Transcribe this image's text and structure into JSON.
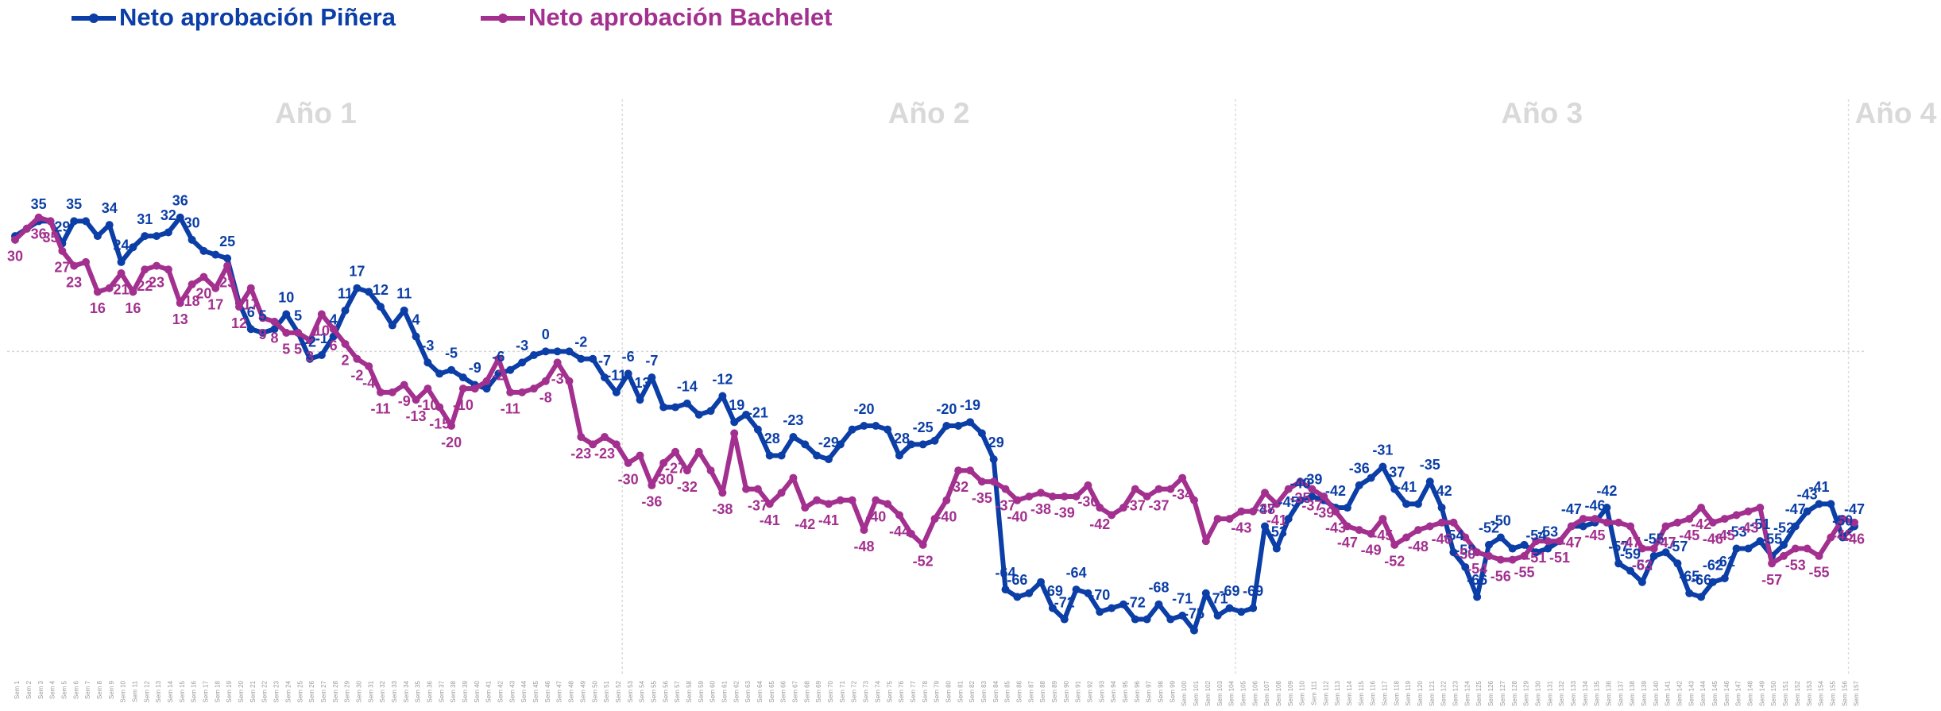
{
  "chart_data": {
    "type": "line",
    "annotations": [
      "Año 1",
      "Año 2",
      "Año 3",
      "Año 4"
    ],
    "legend": "top-left",
    "grid": true,
    "ylim": [
      -80,
      40
    ],
    "yticks": [
      0
    ],
    "categories": [
      "Sem 1",
      "Sem 2",
      "Sem 3",
      "Sem 4",
      "Sem 5",
      "Sem 6",
      "Sem 7",
      "Sem 8",
      "Sem 9",
      "Sem 10",
      "Sem 11",
      "Sem 12",
      "Sem 13",
      "Sem 14",
      "Sem 15",
      "Sem 16",
      "Sem 17",
      "Sem 18",
      "Sem 19",
      "Sem 20",
      "Sem 21",
      "Sem 22",
      "Sem 23",
      "Sem 24",
      "Sem 25",
      "Sem 26",
      "Sem 27",
      "Sem 28",
      "Sem 29",
      "Sem 30",
      "Sem 31",
      "Sem 32",
      "Sem 33",
      "Sem 34",
      "Sem 35",
      "Sem 36",
      "Sem 37",
      "Sem 38",
      "Sem 39",
      "Sem 40",
      "Sem 41",
      "Sem 42",
      "Sem 43",
      "Sem 44",
      "Sem 45",
      "Sem 46",
      "Sem 47",
      "Sem 48",
      "Sem 49",
      "Sem 50",
      "Sem 51",
      "Sem 52",
      "Sem 53",
      "Sem 54",
      "Sem 55",
      "Sem 56",
      "Sem 57",
      "Sem 58",
      "Sem 59",
      "Sem 60",
      "Sem 61",
      "Sem 62",
      "Sem 63",
      "Sem 64",
      "Sem 65",
      "Sem 66",
      "Sem 67",
      "Sem 68",
      "Sem 69",
      "Sem 70",
      "Sem 71",
      "Sem 72",
      "Sem 73",
      "Sem 74",
      "Sem 75",
      "Sem 76",
      "Sem 77",
      "Sem 78",
      "Sem 79",
      "Sem 80",
      "Sem 81",
      "Sem 82",
      "Sem 83",
      "Sem 84",
      "Sem 85",
      "Sem 86",
      "Sem 87",
      "Sem 88",
      "Sem 89",
      "Sem 90",
      "Sem 91",
      "Sem 92",
      "Sem 93",
      "Sem 94",
      "Sem 95",
      "Sem 96",
      "Sem 97",
      "Sem 98",
      "Sem 99",
      "Sem 100",
      "Sem 101",
      "Sem 102",
      "Sem 103",
      "Sem 104",
      "Sem 105",
      "Sem 106",
      "Sem 107",
      "Sem 108",
      "Sem 109",
      "Sem 110",
      "Sem 111",
      "Sem 112",
      "Sem 113",
      "Sem 114",
      "Sem 115",
      "Sem 116",
      "Sem 117",
      "Sem 118",
      "Sem 119",
      "Sem 120",
      "Sem 121",
      "Sem 122",
      "Sem 123",
      "Sem 124",
      "Sem 125",
      "Sem 126",
      "Sem 127",
      "Sem 128",
      "Sem 129",
      "Sem 130",
      "Sem 131",
      "Sem 132",
      "Sem 133",
      "Sem 134",
      "Sem 135",
      "Sem 136",
      "Sem 137",
      "Sem 138",
      "Sem 139",
      "Sem 140",
      "Sem 141",
      "Sem 142",
      "Sem 143",
      "Sem 144",
      "Sem 145",
      "Sem 146",
      "Sem 147",
      "Sem 148",
      "Sem 149",
      "Sem 150",
      "Sem 151",
      "Sem 152",
      "Sem 153",
      "Sem 154",
      "Sem 155",
      "Sem 156",
      "Sem 157"
    ],
    "series": [
      {
        "name": "Neto aprobación Piñera",
        "color": "#0b3ea6",
        "values": [
          31,
          33,
          35,
          35,
          29,
          35,
          35,
          31,
          34,
          24,
          28,
          31,
          31,
          32,
          36,
          30,
          27,
          26,
          25,
          13,
          6,
          5,
          6,
          10,
          5,
          -2,
          -1,
          4,
          11,
          17,
          16,
          12,
          7,
          11,
          4,
          -3,
          -6,
          -5,
          -7,
          -9,
          -10,
          -6,
          -5,
          -3,
          -1,
          0,
          0,
          0,
          -2,
          -2,
          -7,
          -11,
          -6,
          -13,
          -7,
          -15,
          -15,
          -14,
          -17,
          -16,
          -12,
          -19,
          -17,
          -21,
          -28,
          -28,
          -23,
          -25,
          -28,
          -29,
          -25,
          -21,
          -20,
          -20,
          -21,
          -28,
          -25,
          -25,
          -24,
          -20,
          -20,
          -19,
          -22,
          -29,
          -64,
          -66,
          -65,
          -62,
          -69,
          -72,
          -64,
          -65,
          -70,
          -69,
          -68,
          -72,
          -72,
          -68,
          -72,
          -71,
          -75,
          -65,
          -71,
          -69,
          -70,
          -69,
          -47,
          -53,
          -45,
          -40,
          -39,
          -40,
          -42,
          -42,
          -36,
          -34,
          -31,
          -37,
          -41,
          -41,
          -35,
          -42,
          -54,
          -58,
          -66,
          -52,
          -50,
          -53,
          -52,
          -54,
          -53,
          -51,
          -47,
          -47,
          -46,
          -42,
          -57,
          -59,
          -62,
          -55,
          -54,
          -57,
          -65,
          -66,
          -62,
          -61,
          -53,
          -53,
          -51,
          -55,
          -52,
          -47,
          -43,
          -41,
          -41,
          -50,
          -47
        ],
        "value_labels": [
          null,
          null,
          "35",
          null,
          "29",
          "35",
          null,
          null,
          "34",
          "24",
          null,
          "31",
          null,
          "32",
          "36",
          "30",
          null,
          null,
          "25",
          null,
          "6",
          "5",
          null,
          "10",
          "5",
          "-2",
          "-1",
          "4",
          "11",
          "17",
          null,
          "12",
          null,
          "11",
          "4",
          "-3",
          null,
          "-5",
          null,
          "-9",
          null,
          "-6",
          null,
          "-3",
          null,
          "0",
          null,
          null,
          "-2",
          null,
          "-7",
          "-11",
          "-6",
          "-13",
          "-7",
          null,
          null,
          "-14",
          null,
          null,
          "-12",
          "-19",
          null,
          "-21",
          "-28",
          null,
          "-23",
          null,
          null,
          "-29",
          null,
          null,
          "-20",
          null,
          null,
          "-28",
          null,
          "-25",
          null,
          "-20",
          null,
          "-19",
          null,
          "-29",
          "-64",
          "-66",
          null,
          null,
          "-69",
          "-72",
          "-64",
          null,
          "-70",
          null,
          null,
          "-72",
          null,
          "-68",
          null,
          "-71",
          "-75",
          null,
          "-71",
          "-69",
          null,
          "-69",
          "-47",
          "-53",
          "-45",
          "-40",
          "-39",
          null,
          "-42",
          null,
          "-36",
          null,
          "-31",
          "-37",
          "-41",
          null,
          "-35",
          "-42",
          "-54",
          "-58",
          "-66",
          "-52",
          "-50",
          null,
          null,
          "-54",
          "-53",
          null,
          "-47",
          null,
          "-46",
          "-42",
          "-57",
          "-59",
          "-62",
          "-55",
          null,
          "-57",
          "-65",
          "-66",
          "-62",
          "-61",
          "-53",
          null,
          "-51",
          "-55",
          "-52",
          "-47",
          "-43",
          "-41",
          null,
          "-50",
          "-47"
        ]
      },
      {
        "name": "Neto aprobación Bachelet",
        "color": "#a3308f",
        "values": [
          30,
          33,
          36,
          35,
          27,
          23,
          24,
          16,
          17,
          21,
          16,
          22,
          23,
          22,
          13,
          18,
          20,
          17,
          23,
          12,
          17,
          9,
          8,
          5,
          5,
          3,
          10,
          6,
          2,
          -2,
          -4,
          -11,
          -11,
          -9,
          -13,
          -10,
          -15,
          -20,
          -10,
          -10,
          -8,
          -2,
          -11,
          -11,
          -10,
          -8,
          -3,
          -8,
          -23,
          -25,
          -23,
          -25,
          -30,
          -28,
          -36,
          -30,
          -27,
          -32,
          -27,
          -32,
          -38,
          -22,
          -37,
          -37,
          -41,
          -38,
          -34,
          -42,
          -40,
          -41,
          -40,
          -40,
          -48,
          -40,
          -41,
          -44,
          -49,
          -52,
          -45,
          -40,
          -32,
          -32,
          -35,
          -35,
          -37,
          -40,
          -39,
          -38,
          -39,
          -39,
          -39,
          -36,
          -42,
          -44,
          -42,
          -37,
          -39,
          -37,
          -37,
          -34,
          -40,
          -51,
          -45,
          -45,
          -43,
          -43,
          -38,
          -41,
          -37,
          -35,
          -37,
          -39,
          -43,
          -47,
          -48,
          -49,
          -45,
          -52,
          -50,
          -48,
          -47,
          -46,
          -46,
          -50,
          -54,
          -55,
          -56,
          -56,
          -55,
          -51,
          -51,
          -51,
          -47,
          -45,
          -45,
          -46,
          -46,
          -47,
          -53,
          -53,
          -47,
          -46,
          -45,
          -42,
          -46,
          -45,
          -44,
          -43,
          -42,
          -57,
          -55,
          -53,
          -53,
          -55,
          -50,
          -45,
          -46
        ],
        "value_labels": [
          "30",
          null,
          "36",
          "35",
          "27",
          "23",
          null,
          "16",
          null,
          "21",
          "16",
          "22",
          "23",
          null,
          "13",
          "18",
          "20",
          "17",
          "23",
          "12",
          "17",
          "9",
          "8",
          "5",
          "5",
          "3",
          "10",
          "6",
          "2",
          "-2",
          "-4",
          "-11",
          null,
          "-9",
          "-13",
          "-10",
          "-15",
          "-20",
          "-10",
          null,
          null,
          "-2",
          "-11",
          null,
          null,
          "-8",
          "-3",
          null,
          "-23",
          null,
          "-23",
          null,
          "-30",
          null,
          "-36",
          "-30",
          "-27",
          "-32",
          null,
          null,
          "-38",
          null,
          null,
          "-37",
          "-41",
          null,
          null,
          "-42",
          null,
          "-41",
          null,
          null,
          "-48",
          "-40",
          null,
          "-44",
          null,
          "-52",
          null,
          "-40",
          "-32",
          null,
          "-35",
          null,
          "-37",
          "-40",
          null,
          "-38",
          null,
          "-39",
          null,
          "-36",
          "-42",
          null,
          null,
          "-37",
          null,
          "-37",
          null,
          "-34",
          null,
          null,
          null,
          null,
          "-43",
          null,
          "-38",
          "-41",
          null,
          "-35",
          "-37",
          "-39",
          "-43",
          "-47",
          null,
          "-49",
          "-45",
          "-52",
          null,
          "-48",
          null,
          "-46",
          null,
          "-50",
          "-54",
          null,
          "-56",
          null,
          "-55",
          "-51",
          null,
          "-51",
          "-47",
          null,
          "-45",
          null,
          null,
          "-47",
          "-53",
          null,
          "-47",
          null,
          "-45",
          "-42",
          "-46",
          "-45",
          null,
          "-43",
          null,
          "-57",
          null,
          "-53",
          null,
          "-55",
          null,
          "-45",
          "-46"
        ]
      }
    ]
  }
}
